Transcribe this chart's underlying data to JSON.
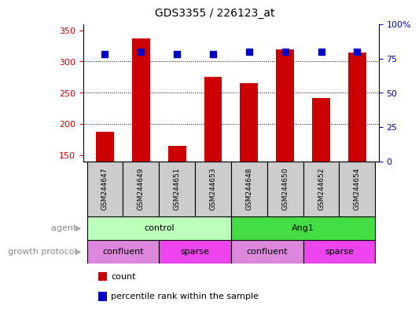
{
  "title": "GDS3355 / 226123_at",
  "samples": [
    "GSM244647",
    "GSM244649",
    "GSM244651",
    "GSM244653",
    "GSM244648",
    "GSM244650",
    "GSM244652",
    "GSM244654"
  ],
  "count_values": [
    187,
    337,
    165,
    275,
    265,
    320,
    242,
    315
  ],
  "percentile_values": [
    78,
    80,
    78,
    78,
    80,
    80,
    80,
    80
  ],
  "ylim_left": [
    140,
    360
  ],
  "ylim_right": [
    0,
    100
  ],
  "yticks_left": [
    150,
    200,
    250,
    300,
    350
  ],
  "yticks_right": [
    0,
    25,
    50,
    75,
    100
  ],
  "yticklabels_right": [
    "0",
    "25",
    "50",
    "75",
    "100%"
  ],
  "bar_color": "#cc0000",
  "dot_color": "#0000cc",
  "agent_groups": [
    {
      "label": "control",
      "start": 0,
      "end": 4,
      "color": "#bbffbb"
    },
    {
      "label": "Ang1",
      "start": 4,
      "end": 8,
      "color": "#44dd44"
    }
  ],
  "growth_groups": [
    {
      "label": "confluent",
      "start": 0,
      "end": 2,
      "color": "#dd88dd"
    },
    {
      "label": "sparse",
      "start": 2,
      "end": 4,
      "color": "#ee44ee"
    },
    {
      "label": "confluent",
      "start": 4,
      "end": 6,
      "color": "#dd88dd"
    },
    {
      "label": "sparse",
      "start": 6,
      "end": 8,
      "color": "#ee44ee"
    }
  ],
  "legend_count_label": "count",
  "legend_pct_label": "percentile rank within the sample",
  "xlabel_agent": "agent",
  "xlabel_growth": "growth protocol",
  "bar_width": 0.5,
  "dot_size": 40,
  "tick_label_color_left": "#cc0000",
  "tick_label_color_right": "#0000cc",
  "grid_color": "#000000",
  "background_color": "#ffffff",
  "sample_box_color": "#cccccc",
  "arrow_color": "#999999"
}
